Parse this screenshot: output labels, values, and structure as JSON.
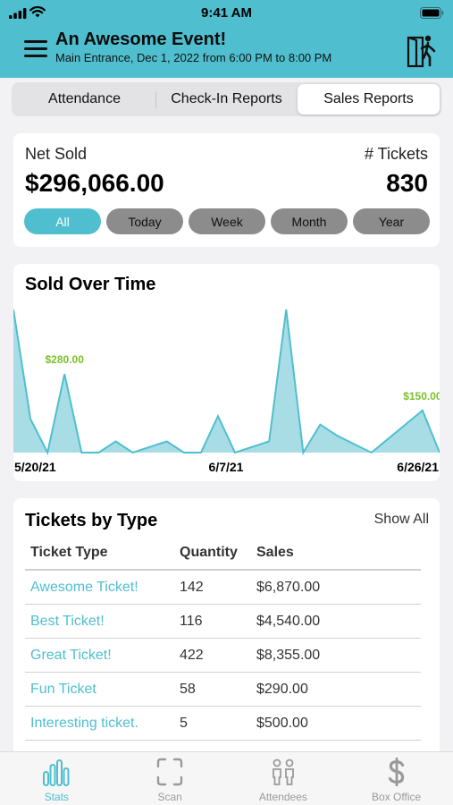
{
  "status_bar": {
    "time": "9:41 AM"
  },
  "header": {
    "title": "An Awesome Event!",
    "subtitle": "Main Entrance, Dec  1, 2022 from 6:00 PM to 8:00 PM",
    "menu_icon": "hamburger-icon",
    "action_icon": "person-entering-door-icon"
  },
  "segments": [
    {
      "label": "Attendance",
      "active": false
    },
    {
      "label": "Check-In Reports",
      "active": false
    },
    {
      "label": "Sales Reports",
      "active": true
    }
  ],
  "summary": {
    "net_label": "Net Sold",
    "net_value": "$296,066.00",
    "tickets_label": "# Tickets",
    "tickets_value": "830",
    "filters": [
      {
        "label": "All",
        "active": true
      },
      {
        "label": "Today",
        "active": false
      },
      {
        "label": "Week",
        "active": false
      },
      {
        "label": "Month",
        "active": false
      },
      {
        "label": "Year",
        "active": false
      }
    ]
  },
  "chart_data": {
    "type": "area",
    "title": "Sold Over Time",
    "x_tick_labels": [
      "5/20/21",
      "6/7/21",
      "6/26/21"
    ],
    "values": [
      510,
      120,
      0,
      280,
      0,
      0,
      40,
      0,
      20,
      40,
      0,
      0,
      130,
      0,
      20,
      40,
      510,
      0,
      100,
      60,
      30,
      0,
      50,
      100,
      150,
      0
    ],
    "annotations": [
      {
        "index": 3,
        "label": "$280.00"
      },
      {
        "index": 24,
        "label": "$150.00"
      }
    ],
    "ylim": [
      0,
      510
    ],
    "grid": false,
    "colors": {
      "fill": "#a8dde5",
      "line": "#4fbfcf",
      "annotation": "#7cbf2a"
    }
  },
  "tickets_by_type": {
    "title": "Tickets by Type",
    "show_all": "Show All",
    "columns": [
      "Ticket Type",
      "Quantity",
      "Sales"
    ],
    "rows": [
      [
        "Awesome Ticket!",
        "142",
        "$6,870.00"
      ],
      [
        "Best Ticket!",
        "116",
        "$4,540.00"
      ],
      [
        "Great Ticket!",
        "422",
        "$8,355.00"
      ],
      [
        "Fun Ticket",
        "58",
        "$290.00"
      ],
      [
        "Interesting ticket.",
        "5",
        "$500.00"
      ]
    ]
  },
  "tab_bar": [
    {
      "label": "Stats",
      "icon": "bar-chart-icon",
      "active": true
    },
    {
      "label": "Scan",
      "icon": "scan-frame-icon",
      "active": false
    },
    {
      "label": "Attendees",
      "icon": "attendees-icon",
      "active": false
    },
    {
      "label": "Box Office",
      "icon": "dollar-icon",
      "active": false
    }
  ],
  "colors": {
    "accent": "#4fbfcf",
    "pill_inactive": "#8c8c8c",
    "annotation": "#7cbf2a"
  }
}
